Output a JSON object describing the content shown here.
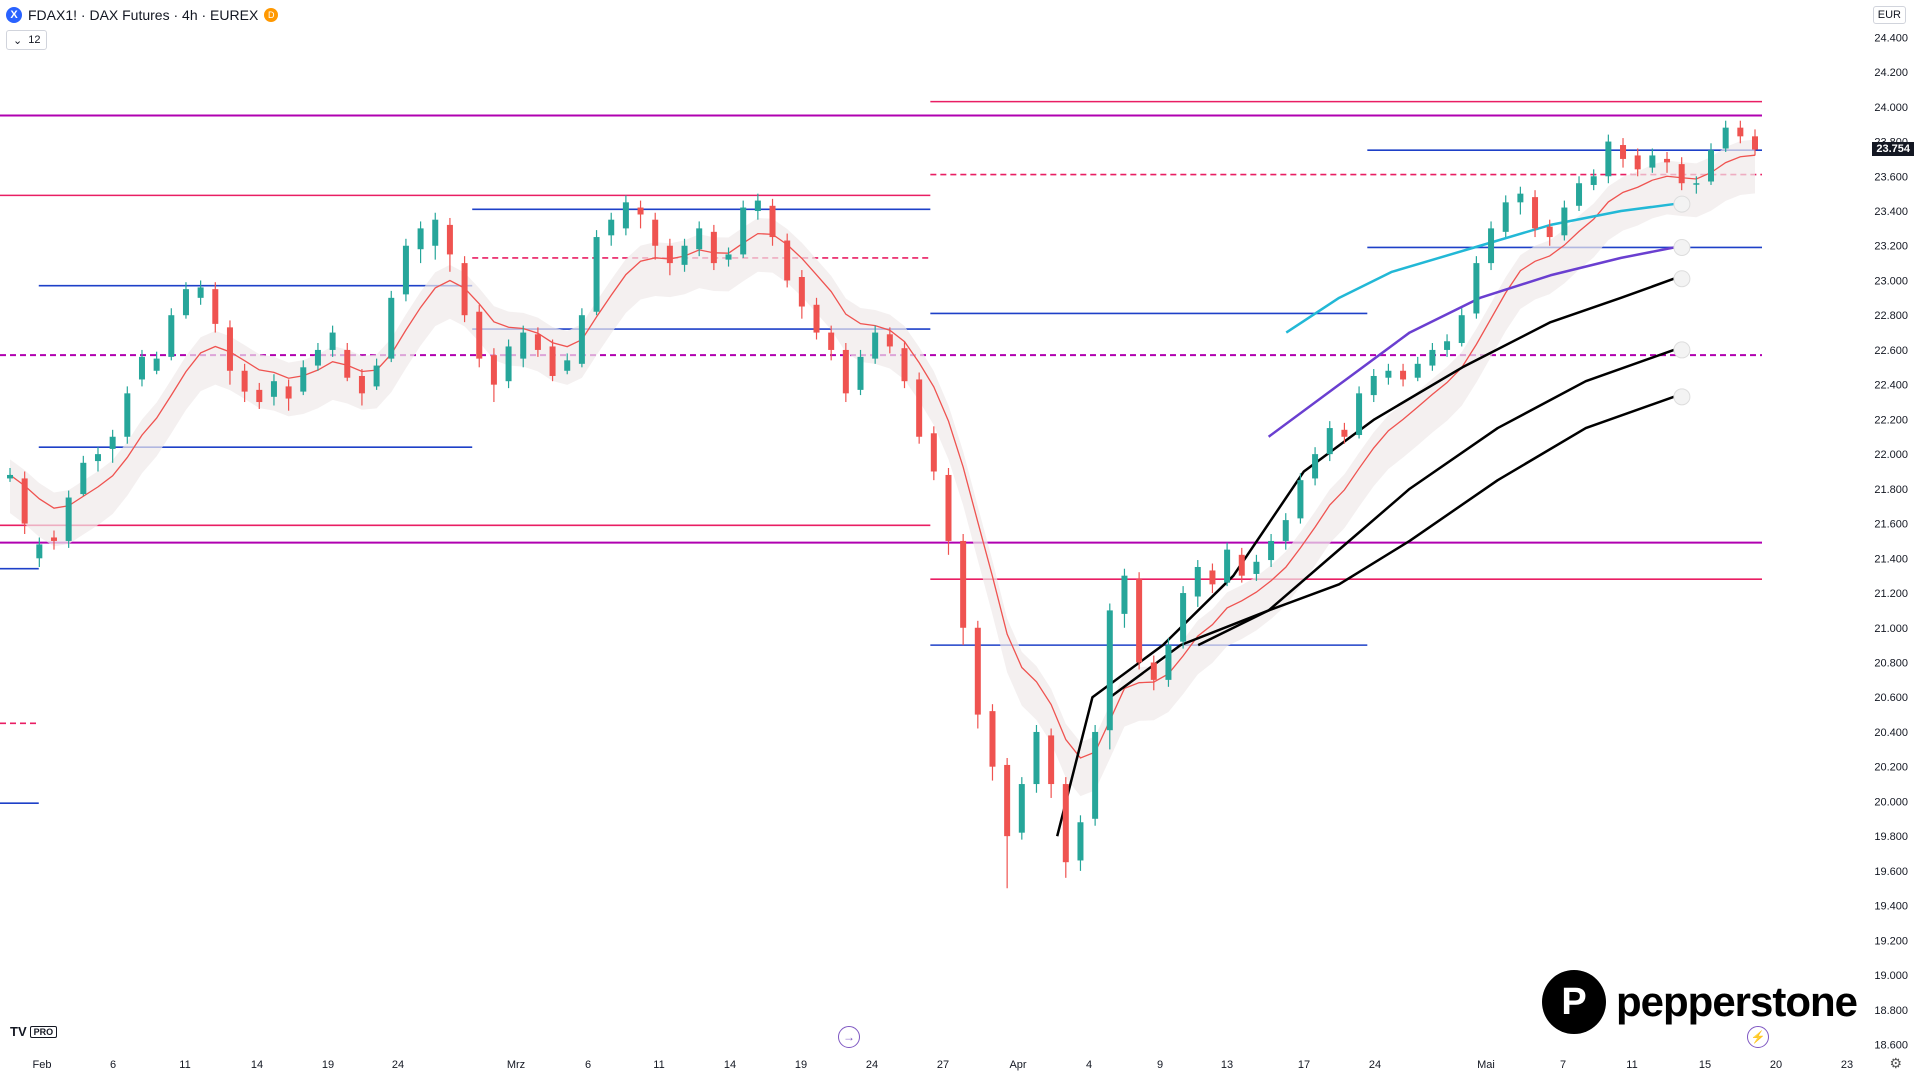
{
  "header": {
    "symbol_icon": "X",
    "title": "FDAX1! · DAX Futures · 4h · EUREX",
    "badge": "D",
    "indicator_count": "12",
    "currency": "EUR"
  },
  "watermark": {
    "tv": "TV",
    "tv_pro": "PRO",
    "brand": "pepperstone"
  },
  "colors": {
    "up": "#26a69a",
    "down": "#ef5350",
    "hline_blue": "#1e40c8",
    "hline_purple": "#b000b0",
    "hline_pink": "#e91e63",
    "ema_red": "#ef5350",
    "cyan": "#22b8d6",
    "violet": "#6a3fd0",
    "black": "#000000"
  },
  "chart_data": {
    "type": "candlestick",
    "symbol": "FDAX1!",
    "timeframe": "4h",
    "y_ticks": [
      "24.400",
      "24.200",
      "24.000",
      "23.800",
      "23.600",
      "23.400",
      "23.200",
      "23.000",
      "22.800",
      "22.600",
      "22.400",
      "22.200",
      "22.000",
      "21.800",
      "21.600",
      "21.400",
      "21.200",
      "21.000",
      "20.800",
      "20.600",
      "20.400",
      "20.200",
      "20.000",
      "19.800",
      "19.600",
      "19.400",
      "19.200",
      "19.000",
      "18.800",
      "18.600"
    ],
    "ylim": [
      18580,
      24500
    ],
    "x_ticks": [
      "Feb",
      "6",
      "11",
      "14",
      "19",
      "24",
      "Mrz",
      "6",
      "11",
      "14",
      "19",
      "24",
      "27",
      "Apr",
      "4",
      "9",
      "13",
      "17",
      "24",
      "Mai",
      "7",
      "11",
      "15",
      "20",
      "23"
    ],
    "last_price": "23.754",
    "candles": [
      [
        21880,
        21860,
        21840
      ],
      [
        21600,
        21860,
        21540
      ],
      [
        21480,
        21400,
        21350
      ],
      [
        21500,
        21520,
        21450
      ],
      [
        21750,
        21500,
        21460
      ],
      [
        21950,
        21770,
        21760
      ],
      [
        22000,
        21960,
        21900
      ],
      [
        22100,
        22030,
        21950
      ],
      [
        22350,
        22100,
        22060
      ],
      [
        22560,
        22430,
        22390
      ],
      [
        22550,
        22480,
        22460
      ],
      [
        22800,
        22560,
        22540
      ],
      [
        22950,
        22800,
        22780
      ],
      [
        22960,
        22900,
        22860
      ],
      [
        22750,
        22950,
        22700
      ],
      [
        22480,
        22730,
        22400
      ],
      [
        22360,
        22480,
        22300
      ],
      [
        22300,
        22370,
        22260
      ],
      [
        22420,
        22330,
        22280
      ],
      [
        22320,
        22390,
        22250
      ],
      [
        22500,
        22360,
        22340
      ],
      [
        22600,
        22510,
        22480
      ],
      [
        22700,
        22600,
        22560
      ],
      [
        22440,
        22600,
        22420
      ],
      [
        22350,
        22450,
        22280
      ],
      [
        22510,
        22390,
        22370
      ],
      [
        22900,
        22550,
        22530
      ],
      [
        23200,
        22920,
        22880
      ],
      [
        23300,
        23180,
        23100
      ],
      [
        23350,
        23200,
        23120
      ],
      [
        23150,
        23320,
        23050
      ],
      [
        22800,
        23100,
        22760
      ],
      [
        22550,
        22820,
        22500
      ],
      [
        22400,
        22570,
        22300
      ],
      [
        22620,
        22420,
        22380
      ],
      [
        22700,
        22550,
        22500
      ],
      [
        22600,
        22690,
        22560
      ],
      [
        22450,
        22620,
        22420
      ],
      [
        22540,
        22480,
        22460
      ],
      [
        22800,
        22520,
        22500
      ],
      [
        23250,
        22820,
        22800
      ],
      [
        23350,
        23260,
        23200
      ],
      [
        23450,
        23300,
        23260
      ],
      [
        23380,
        23420,
        23300
      ],
      [
        23200,
        23350,
        23120
      ],
      [
        23100,
        23200,
        23030
      ],
      [
        23200,
        23090,
        23050
      ],
      [
        23300,
        23180,
        23140
      ],
      [
        23100,
        23280,
        23060
      ],
      [
        23150,
        23120,
        23080
      ],
      [
        23420,
        23150,
        23130
      ],
      [
        23460,
        23400,
        23350
      ],
      [
        23250,
        23430,
        23200
      ],
      [
        23000,
        23230,
        22960
      ],
      [
        22850,
        23020,
        22780
      ],
      [
        22700,
        22860,
        22660
      ],
      [
        22600,
        22700,
        22540
      ],
      [
        22350,
        22600,
        22300
      ],
      [
        22560,
        22370,
        22340
      ],
      [
        22700,
        22550,
        22520
      ],
      [
        22620,
        22690,
        22580
      ],
      [
        22420,
        22610,
        22380
      ],
      [
        22100,
        22430,
        22060
      ],
      [
        21900,
        22120,
        21850
      ],
      [
        21500,
        21880,
        21420
      ],
      [
        21000,
        21500,
        20900
      ],
      [
        20500,
        21000,
        20420
      ],
      [
        20200,
        20520,
        20120
      ],
      [
        19800,
        20210,
        19500
      ],
      [
        20100,
        19820,
        19780
      ],
      [
        20400,
        20100,
        20050
      ],
      [
        20100,
        20380,
        20020
      ],
      [
        19650,
        20100,
        19560
      ],
      [
        19880,
        19660,
        19600
      ],
      [
        20400,
        19900,
        19860
      ],
      [
        21100,
        20410,
        20300
      ],
      [
        21300,
        21080,
        21000
      ],
      [
        20800,
        21280,
        20760
      ],
      [
        20700,
        20800,
        20640
      ],
      [
        20900,
        20700,
        20660
      ],
      [
        21200,
        20920,
        20880
      ],
      [
        21350,
        21180,
        21120
      ],
      [
        21250,
        21330,
        21200
      ],
      [
        21450,
        21260,
        21240
      ],
      [
        21300,
        21420,
        21260
      ],
      [
        21380,
        21310,
        21270
      ],
      [
        21500,
        21390,
        21350
      ],
      [
        21620,
        21500,
        21450
      ],
      [
        21850,
        21630,
        21600
      ],
      [
        22000,
        21860,
        21820
      ],
      [
        22150,
        22000,
        21960
      ],
      [
        22100,
        22140,
        22060
      ],
      [
        22350,
        22110,
        22090
      ],
      [
        22450,
        22340,
        22300
      ],
      [
        22480,
        22440,
        22400
      ],
      [
        22430,
        22480,
        22390
      ],
      [
        22520,
        22440,
        22420
      ],
      [
        22600,
        22510,
        22480
      ],
      [
        22650,
        22600,
        22560
      ],
      [
        22800,
        22640,
        22620
      ],
      [
        23100,
        22810,
        22780
      ],
      [
        23300,
        23100,
        23060
      ],
      [
        23450,
        23280,
        23250
      ],
      [
        23500,
        23450,
        23380
      ],
      [
        23300,
        23480,
        23250
      ],
      [
        23250,
        23310,
        23200
      ],
      [
        23420,
        23260,
        23230
      ],
      [
        23560,
        23430,
        23400
      ],
      [
        23600,
        23550,
        23520
      ],
      [
        23800,
        23600,
        23560
      ],
      [
        23700,
        23780,
        23650
      ],
      [
        23640,
        23720,
        23600
      ],
      [
        23720,
        23650,
        23620
      ],
      [
        23680,
        23700,
        23620
      ],
      [
        23560,
        23670,
        23520
      ],
      [
        23560,
        23560,
        23500
      ],
      [
        23750,
        23570,
        23550
      ],
      [
        23880,
        23760,
        23740
      ],
      [
        23830,
        23880,
        23790
      ],
      [
        23754,
        23830,
        23720
      ]
    ],
    "candles_note": "each candle: [close, open, low]",
    "horizontal_levels": [
      {
        "price": 23950,
        "color": "hline_purple",
        "style": "solid",
        "from_frac": 0,
        "to_frac": 1
      },
      {
        "price": 24030,
        "color": "hline_pink",
        "style": "solid",
        "from_frac": 0.528,
        "to_frac": 1
      },
      {
        "price": 23750,
        "color": "hline_blue",
        "style": "solid",
        "from_frac": 0.776,
        "to_frac": 1
      },
      {
        "price": 23610,
        "color": "hline_pink",
        "style": "dashed",
        "from_frac": 0.528,
        "to_frac": 1
      },
      {
        "price": 23490,
        "color": "hline_pink",
        "style": "solid",
        "from_frac": 0,
        "to_frac": 0.528
      },
      {
        "price": 23410,
        "color": "hline_blue",
        "style": "solid",
        "from_frac": 0.268,
        "to_frac": 0.528
      },
      {
        "price": 23190,
        "color": "hline_blue",
        "style": "solid",
        "from_frac": 0.776,
        "to_frac": 1
      },
      {
        "price": 23130,
        "color": "hline_pink",
        "style": "dashed",
        "from_frac": 0.268,
        "to_frac": 0.528
      },
      {
        "price": 22970,
        "color": "hline_blue",
        "style": "solid",
        "from_frac": 0.022,
        "to_frac": 0.268
      },
      {
        "price": 22810,
        "color": "hline_blue",
        "style": "solid",
        "from_frac": 0.528,
        "to_frac": 0.776
      },
      {
        "price": 22720,
        "color": "hline_blue",
        "style": "solid",
        "from_frac": 0.268,
        "to_frac": 0.528
      },
      {
        "price": 22570,
        "color": "hline_purple",
        "style": "dashed",
        "from_frac": 0,
        "to_frac": 1
      },
      {
        "price": 22040,
        "color": "hline_blue",
        "style": "solid",
        "from_frac": 0.022,
        "to_frac": 0.268
      },
      {
        "price": 21590,
        "color": "hline_pink",
        "style": "solid",
        "from_frac": 0,
        "to_frac": 0.528
      },
      {
        "price": 21490,
        "color": "hline_purple",
        "style": "solid",
        "from_frac": 0,
        "to_frac": 1
      },
      {
        "price": 21340,
        "color": "hline_blue",
        "style": "solid",
        "from_frac": 0,
        "to_frac": 0.022
      },
      {
        "price": 21280,
        "color": "hline_pink",
        "style": "solid",
        "from_frac": 0.528,
        "to_frac": 1
      },
      {
        "price": 20900,
        "color": "hline_blue",
        "style": "solid",
        "from_frac": 0.528,
        "to_frac": 0.776
      },
      {
        "price": 20450,
        "color": "hline_pink",
        "style": "dashed",
        "from_frac": 0,
        "to_frac": 0.022
      },
      {
        "price": 19990,
        "color": "hline_blue",
        "style": "solid",
        "from_frac": 0,
        "to_frac": 0.022
      }
    ],
    "overlay_lines": [
      {
        "name": "cyan",
        "color": "cyan",
        "width": 2.5,
        "points": [
          [
            0.73,
            22700
          ],
          [
            0.76,
            22900
          ],
          [
            0.79,
            23050
          ],
          [
            0.84,
            23200
          ],
          [
            0.88,
            23320
          ],
          [
            0.92,
            23400
          ],
          [
            0.95,
            23440
          ]
        ]
      },
      {
        "name": "violet",
        "color": "violet",
        "width": 2.5,
        "points": [
          [
            0.72,
            22100
          ],
          [
            0.76,
            22400
          ],
          [
            0.8,
            22700
          ],
          [
            0.84,
            22900
          ],
          [
            0.88,
            23030
          ],
          [
            0.92,
            23130
          ],
          [
            0.95,
            23190
          ]
        ]
      },
      {
        "name": "black1",
        "color": "black",
        "width": 2.5,
        "points": [
          [
            0.6,
            19800
          ],
          [
            0.62,
            20600
          ],
          [
            0.66,
            20900
          ],
          [
            0.7,
            21300
          ],
          [
            0.74,
            21900
          ],
          [
            0.78,
            22200
          ],
          [
            0.83,
            22500
          ],
          [
            0.88,
            22760
          ],
          [
            0.92,
            22900
          ],
          [
            0.95,
            23010
          ]
        ]
      },
      {
        "name": "black2",
        "color": "black",
        "width": 2.5,
        "points": [
          [
            0.63,
            20600
          ],
          [
            0.67,
            20900
          ],
          [
            0.72,
            21100
          ],
          [
            0.76,
            21450
          ],
          [
            0.8,
            21800
          ],
          [
            0.85,
            22150
          ],
          [
            0.9,
            22420
          ],
          [
            0.95,
            22600
          ]
        ]
      },
      {
        "name": "black3",
        "color": "black",
        "width": 2.5,
        "points": [
          [
            0.68,
            20900
          ],
          [
            0.72,
            21100
          ],
          [
            0.76,
            21250
          ],
          [
            0.8,
            21500
          ],
          [
            0.85,
            21850
          ],
          [
            0.9,
            22150
          ],
          [
            0.95,
            22330
          ]
        ]
      }
    ]
  }
}
